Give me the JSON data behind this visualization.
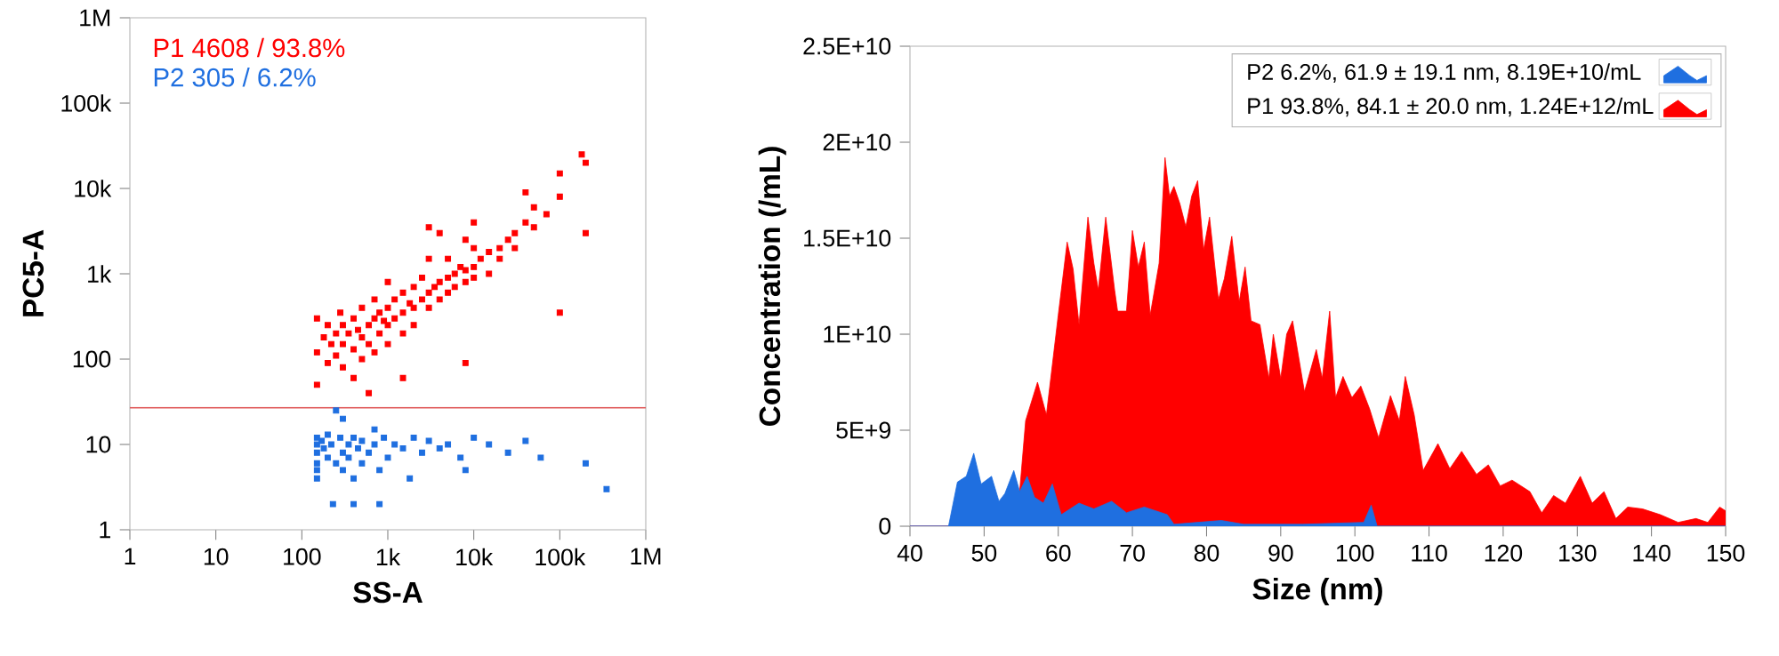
{
  "chart_data": [
    {
      "type": "scatter",
      "xlabel": "SS-A",
      "ylabel": "PC5-A",
      "log": "xy",
      "marker": "square",
      "legend": "top left",
      "xlim": [
        1,
        1000000
      ],
      "ylim": [
        1,
        1000000
      ],
      "xticks": [
        1,
        10,
        100,
        {
          "value": 1000,
          "label": "1k"
        },
        {
          "value": 10000,
          "label": "10k"
        },
        {
          "value": 100000,
          "label": "100k"
        },
        {
          "value": 1000000,
          "label": "1M"
        }
      ],
      "yticks": [
        1,
        10,
        100,
        {
          "value": 1000,
          "label": "1k"
        },
        {
          "value": 10000,
          "label": "10k"
        },
        {
          "value": 100000,
          "label": "100k"
        },
        {
          "value": 1000000,
          "label": "1M"
        }
      ],
      "ref_lines": [
        {
          "axis": "y",
          "value": 27,
          "color": "#e05a5a"
        }
      ],
      "series": [
        {
          "name": "P1  4608 / 93.8%",
          "color": "#ff0000",
          "x": [
            150,
            150,
            180,
            200,
            200,
            220,
            250,
            250,
            280,
            300,
            300,
            300,
            350,
            400,
            400,
            400,
            450,
            500,
            500,
            500,
            600,
            600,
            700,
            700,
            700,
            800,
            800,
            900,
            1000,
            1000,
            1000,
            1000,
            1200,
            1200,
            1500,
            1500,
            1500,
            1800,
            2000,
            2000,
            2000,
            2500,
            2500,
            3000,
            3000,
            3000,
            3500,
            4000,
            4000,
            4000,
            5000,
            5000,
            5000,
            6000,
            6000,
            7000,
            8000,
            8000,
            8000,
            10000,
            10000,
            10000,
            12000,
            15000,
            15000,
            20000,
            20000,
            25000,
            30000,
            30000,
            40000,
            50000,
            50000,
            70000,
            100000,
            100000,
            100000,
            200000,
            180000,
            200000,
            8000,
            40000,
            1500,
            600,
            150,
            3000,
            10000
          ],
          "values": [
            300,
            120,
            180,
            90,
            250,
            150,
            200,
            110,
            350,
            150,
            80,
            250,
            200,
            130,
            300,
            60,
            220,
            180,
            400,
            100,
            250,
            150,
            300,
            500,
            120,
            200,
            350,
            280,
            250,
            400,
            150,
            800,
            300,
            500,
            350,
            600,
            200,
            450,
            400,
            700,
            250,
            500,
            900,
            600,
            400,
            1500,
            700,
            800,
            500,
            3000,
            900,
            600,
            1500,
            1000,
            700,
            1200,
            1100,
            800,
            2500,
            1200,
            900,
            2000,
            1500,
            1800,
            1000,
            2000,
            1500,
            2500,
            3000,
            2000,
            4000,
            3500,
            6000,
            5000,
            8000,
            15000,
            350,
            20000,
            25000,
            3000,
            90,
            9000,
            60,
            40,
            50,
            3500,
            4000
          ]
        },
        {
          "name": "P2  305 / 6.2%",
          "color": "#1f6fe0",
          "x": [
            150,
            150,
            150,
            150,
            150,
            150,
            170,
            180,
            200,
            200,
            220,
            230,
            250,
            250,
            280,
            300,
            300,
            300,
            350,
            350,
            400,
            400,
            400,
            450,
            500,
            500,
            600,
            700,
            700,
            800,
            800,
            900,
            1000,
            1200,
            1500,
            1800,
            2000,
            2500,
            3000,
            4000,
            5000,
            7000,
            8000,
            10000,
            15000,
            25000,
            40000,
            60000,
            200000,
            350000
          ],
          "values": [
            12,
            10,
            8,
            6,
            5,
            4,
            11,
            9,
            7,
            13,
            10,
            2,
            6,
            25,
            12,
            8,
            5,
            20,
            10,
            7,
            12,
            2,
            4,
            9,
            11,
            6,
            8,
            10,
            15,
            2,
            5,
            12,
            7,
            10,
            9,
            4,
            12,
            8,
            11,
            9,
            10,
            7,
            5,
            12,
            10,
            8,
            11,
            7,
            6,
            3
          ]
        }
      ]
    },
    {
      "type": "area",
      "xlabel": "Size (nm)",
      "ylabel": "Concentration (/mL)",
      "legend": "top right",
      "xlim": [
        40,
        150
      ],
      "ylim": [
        0,
        25000000000
      ],
      "xticks": [
        40,
        50,
        60,
        70,
        80,
        90,
        100,
        110,
        120,
        130,
        140,
        150
      ],
      "yticks": [
        0,
        {
          "value": 5000000000,
          "label": "5E+9"
        },
        {
          "value": 10000000000,
          "label": "1E+10"
        },
        {
          "value": 15000000000,
          "label": "1.5E+10"
        },
        {
          "value": 20000000000,
          "label": "2E+10"
        },
        {
          "value": 25000000000,
          "label": "2.5E+10"
        }
      ],
      "series": [
        {
          "name": "P2  6.2%,  61.9 ± 19.1 nm,  8.19E+10/mL",
          "color": "#1f6fe0",
          "x": [
            40,
            45.2,
            46.4,
            47.6,
            48.6,
            49.6,
            51.0,
            52.0,
            52.8,
            54.0,
            54.8,
            55.8,
            56.8,
            58.0,
            59.2,
            60.4,
            62.8,
            64.8,
            67.2,
            69.2,
            71.6,
            74.7,
            75.6,
            82,
            85,
            93,
            101.2,
            102.2,
            103,
            150
          ],
          "values": [
            0,
            0,
            2300000000.0,
            2600000000.0,
            3800000000.0,
            2200000000.0,
            2600000000.0,
            1300000000.0,
            1700000000.0,
            2900000000.0,
            1800000000.0,
            2600000000.0,
            1500000000.0,
            1200000000.0,
            2200000000.0,
            600000000.0,
            1200000000.0,
            900000000.0,
            1300000000.0,
            700000000.0,
            1000000000.0,
            600000000.0,
            100000000.0,
            300000000.0,
            100000000.0,
            100000000.0,
            200000000.0,
            1100000000.0,
            0,
            0
          ]
        },
        {
          "name": "P1  93.8%,  84.1 ± 20.0 nm,  1.24E+12/mL",
          "color": "#ff0000",
          "x": [
            40,
            54.4,
            55.6,
            57.2,
            58.4,
            60,
            61.2,
            62.0,
            62.8,
            64,
            64.8,
            65.4,
            66.4,
            67.6,
            68.0,
            69.2,
            70,
            70.8,
            71.6,
            72.4,
            73.6,
            74.4,
            75.0,
            75.6,
            76.4,
            77.2,
            78.0,
            78.8,
            79.6,
            80.4,
            81.6,
            82.4,
            83.4,
            84.4,
            85.2,
            86.0,
            87.2,
            88.4,
            89.0,
            90.0,
            90.8,
            91.6,
            93.2,
            94.8,
            95.6,
            96.6,
            97.4,
            98.4,
            99.6,
            100.8,
            102.0,
            103.2,
            104.8,
            106.0,
            106.8,
            108.0,
            109.2,
            111.2,
            112.8,
            114.4,
            116.4,
            118.0,
            119.6,
            121.2,
            123.6,
            125.2,
            126.8,
            128.4,
            130.4,
            132.0,
            133.6,
            135.2,
            136.8,
            138.8,
            141.2,
            143.6,
            146.0,
            147.6,
            149.2,
            150
          ],
          "values": [
            0,
            0,
            5500000000.0,
            7500000000.0,
            5800000000.0,
            11000000000.0,
            14800000000.0,
            13400000000.0,
            10500000000.0,
            16100000000.0,
            13700000000.0,
            12300000000.0,
            16100000000.0,
            12300000000.0,
            11200000000.0,
            11200000000.0,
            15400000000.0,
            13500000000.0,
            14800000000.0,
            11000000000.0,
            13700000000.0,
            19200000000.0,
            17200000000.0,
            17700000000.0,
            16800000000.0,
            15600000000.0,
            17200000000.0,
            18000000000.0,
            14400000000.0,
            16100000000.0,
            11800000000.0,
            12900000000.0,
            15100000000.0,
            11700000000.0,
            13500000000.0,
            10700000000.0,
            10500000000.0,
            7700000000.0,
            10000000000.0,
            7700000000.0,
            10000000000.0,
            10700000000.0,
            7000000000.0,
            9200000000.0,
            7700000000.0,
            11200000000.0,
            6700000000.0,
            7800000000.0,
            6700000000.0,
            7300000000.0,
            6100000000.0,
            4600000000.0,
            6800000000.0,
            5500000000.0,
            7800000000.0,
            5800000000.0,
            2900000000.0,
            4300000000.0,
            3000000000.0,
            3900000000.0,
            2700000000.0,
            3200000000.0,
            2100000000.0,
            2400000000.0,
            1800000000.0,
            700000000.0,
            1600000000.0,
            1200000000.0,
            2600000000.0,
            1200000000.0,
            1800000000.0,
            400000000.0,
            1000000000.0,
            900000000.0,
            600000000.0,
            200000000.0,
            400000000.0,
            200000000.0,
            1000000000.0,
            800000000.0
          ]
        }
      ]
    }
  ]
}
